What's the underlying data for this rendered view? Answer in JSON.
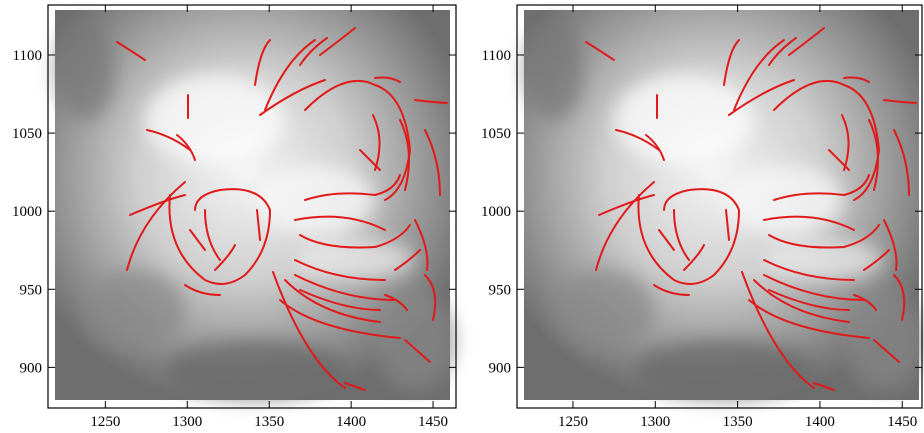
{
  "chart_data": [
    {
      "type": "image",
      "xlim": [
        1215,
        1464
      ],
      "ylim": [
        874,
        1132
      ],
      "xticks": [
        1250,
        1300,
        1350,
        1400,
        1450
      ],
      "yticks": [
        900,
        950,
        1000,
        1050,
        1100
      ]
    },
    {
      "type": "image",
      "xlim": [
        1216,
        1462
      ],
      "ylim": [
        874,
        1132
      ],
      "xticks": [
        1250,
        1300,
        1350,
        1400,
        1450
      ],
      "yticks": [
        900,
        950,
        1000,
        1050,
        1100
      ]
    }
  ]
}
